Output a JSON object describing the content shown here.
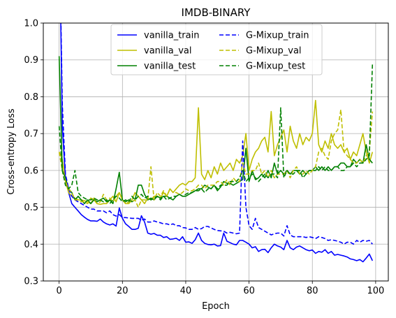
{
  "chart_data": {
    "type": "line",
    "title": "IMDB-BINARY",
    "xlabel": "Epoch",
    "ylabel": "Cross-entropy Loss",
    "xlim": [
      -5,
      104
    ],
    "ylim": [
      0.3,
      1.0
    ],
    "xticks": [
      0,
      20,
      40,
      60,
      80,
      100
    ],
    "yticks": [
      0.3,
      0.4,
      0.5,
      0.6,
      0.7,
      0.8,
      0.9,
      1.0
    ],
    "xtick_labels": [
      "0",
      "20",
      "40",
      "60",
      "80",
      "100"
    ],
    "ytick_labels": [
      "0.3",
      "0.4",
      "0.5",
      "0.6",
      "0.7",
      "0.8",
      "0.9",
      "1.0"
    ],
    "grid": true,
    "legend_position": "top-center",
    "x": [
      0,
      1,
      2,
      3,
      4,
      5,
      6,
      7,
      8,
      9,
      10,
      11,
      12,
      13,
      14,
      15,
      16,
      17,
      18,
      19,
      20,
      21,
      22,
      23,
      24,
      25,
      26,
      27,
      28,
      29,
      30,
      31,
      32,
      33,
      34,
      35,
      36,
      37,
      38,
      39,
      40,
      41,
      42,
      43,
      44,
      45,
      46,
      47,
      48,
      49,
      50,
      51,
      52,
      53,
      54,
      55,
      56,
      57,
      58,
      59,
      60,
      61,
      62,
      63,
      64,
      65,
      66,
      67,
      68,
      69,
      70,
      71,
      72,
      73,
      74,
      75,
      76,
      77,
      78,
      79,
      80,
      81,
      82,
      83,
      84,
      85,
      86,
      87,
      88,
      89,
      90,
      91,
      92,
      93,
      94,
      95,
      96,
      97,
      98,
      99
    ],
    "series": [
      {
        "name": "vanilla_train",
        "color": "#0000ff",
        "dash": "solid",
        "values": [
          1.3,
          0.72,
          0.58,
          0.54,
          0.51,
          0.5,
          0.49,
          0.48,
          0.473,
          0.467,
          0.463,
          0.463,
          0.462,
          0.468,
          0.46,
          0.455,
          0.452,
          0.455,
          0.449,
          0.498,
          0.47,
          0.455,
          0.448,
          0.44,
          0.44,
          0.443,
          0.477,
          0.46,
          0.43,
          0.427,
          0.429,
          0.424,
          0.424,
          0.418,
          0.42,
          0.413,
          0.414,
          0.416,
          0.41,
          0.42,
          0.405,
          0.406,
          0.402,
          0.412,
          0.43,
          0.41,
          0.402,
          0.399,
          0.398,
          0.4,
          0.395,
          0.396,
          0.43,
          0.408,
          0.404,
          0.4,
          0.398,
          0.41,
          0.41,
          0.405,
          0.4,
          0.39,
          0.393,
          0.38,
          0.385,
          0.386,
          0.377,
          0.39,
          0.4,
          0.395,
          0.392,
          0.385,
          0.41,
          0.39,
          0.385,
          0.392,
          0.395,
          0.39,
          0.385,
          0.382,
          0.384,
          0.375,
          0.38,
          0.378,
          0.385,
          0.375,
          0.38,
          0.37,
          0.372,
          0.37,
          0.368,
          0.365,
          0.36,
          0.358,
          0.355,
          0.358,
          0.352,
          0.362,
          0.373,
          0.355
        ]
      },
      {
        "name": "vanilla_val",
        "color": "#bfbf00",
        "dash": "solid",
        "values": [
          0.65,
          0.63,
          0.57,
          0.54,
          0.53,
          0.525,
          0.52,
          0.52,
          0.518,
          0.515,
          0.51,
          0.525,
          0.51,
          0.508,
          0.51,
          0.51,
          0.52,
          0.53,
          0.515,
          0.54,
          0.52,
          0.51,
          0.51,
          0.52,
          0.54,
          0.53,
          0.52,
          0.51,
          0.525,
          0.52,
          0.53,
          0.53,
          0.525,
          0.54,
          0.53,
          0.55,
          0.54,
          0.55,
          0.56,
          0.565,
          0.56,
          0.57,
          0.57,
          0.58,
          0.77,
          0.59,
          0.575,
          0.6,
          0.58,
          0.61,
          0.59,
          0.62,
          0.6,
          0.61,
          0.62,
          0.6,
          0.63,
          0.62,
          0.64,
          0.7,
          0.6,
          0.63,
          0.65,
          0.66,
          0.68,
          0.69,
          0.65,
          0.76,
          0.64,
          0.67,
          0.69,
          0.71,
          0.65,
          0.72,
          0.68,
          0.66,
          0.7,
          0.67,
          0.69,
          0.68,
          0.7,
          0.79,
          0.67,
          0.65,
          0.68,
          0.66,
          0.7,
          0.67,
          0.66,
          0.67,
          0.65,
          0.66,
          0.63,
          0.65,
          0.64,
          0.67,
          0.7,
          0.65,
          0.62,
          0.65
        ]
      },
      {
        "name": "vanilla_test",
        "color": "#008000",
        "dash": "solid",
        "values": [
          0.91,
          0.6,
          0.58,
          0.55,
          0.54,
          0.52,
          0.53,
          0.52,
          0.51,
          0.52,
          0.51,
          0.52,
          0.515,
          0.52,
          0.525,
          0.515,
          0.52,
          0.51,
          0.55,
          0.595,
          0.52,
          0.515,
          0.52,
          0.515,
          0.52,
          0.56,
          0.56,
          0.535,
          0.52,
          0.525,
          0.52,
          0.53,
          0.525,
          0.53,
          0.53,
          0.525,
          0.52,
          0.53,
          0.535,
          0.53,
          0.53,
          0.535,
          0.54,
          0.545,
          0.55,
          0.55,
          0.56,
          0.555,
          0.55,
          0.56,
          0.545,
          0.555,
          0.57,
          0.565,
          0.565,
          0.56,
          0.565,
          0.57,
          0.575,
          0.66,
          0.57,
          0.6,
          0.575,
          0.58,
          0.59,
          0.58,
          0.6,
          0.58,
          0.62,
          0.59,
          0.6,
          0.59,
          0.6,
          0.59,
          0.6,
          0.6,
          0.59,
          0.6,
          0.59,
          0.6,
          0.6,
          0.61,
          0.6,
          0.61,
          0.6,
          0.61,
          0.6,
          0.61,
          0.61,
          0.62,
          0.62,
          0.61,
          0.61,
          0.63,
          0.62,
          0.63,
          0.62,
          0.67,
          0.63,
          0.62
        ]
      },
      {
        "name": "G-Mixup_train",
        "color": "#0000ff",
        "dash": "dashed",
        "values": [
          1.3,
          0.78,
          0.59,
          0.55,
          0.53,
          0.52,
          0.515,
          0.51,
          0.505,
          0.5,
          0.495,
          0.495,
          0.49,
          0.49,
          0.49,
          0.485,
          0.49,
          0.48,
          0.476,
          0.48,
          0.472,
          0.472,
          0.471,
          0.47,
          0.47,
          0.47,
          0.465,
          0.468,
          0.46,
          0.46,
          0.463,
          0.46,
          0.458,
          0.455,
          0.455,
          0.452,
          0.455,
          0.45,
          0.45,
          0.445,
          0.444,
          0.44,
          0.44,
          0.445,
          0.44,
          0.442,
          0.448,
          0.448,
          0.444,
          0.44,
          0.437,
          0.436,
          0.435,
          0.43,
          0.432,
          0.43,
          0.428,
          0.43,
          0.68,
          0.5,
          0.45,
          0.44,
          0.47,
          0.445,
          0.44,
          0.435,
          0.43,
          0.425,
          0.428,
          0.43,
          0.43,
          0.422,
          0.45,
          0.425,
          0.42,
          0.42,
          0.42,
          0.42,
          0.418,
          0.42,
          0.418,
          0.415,
          0.42,
          0.418,
          0.415,
          0.41,
          0.412,
          0.41,
          0.408,
          0.405,
          0.4,
          0.405,
          0.405,
          0.4,
          0.41,
          0.405,
          0.41,
          0.408,
          0.41,
          0.4
        ]
      },
      {
        "name": "G-Mixup_val",
        "color": "#bfbf00",
        "dash": "dashed",
        "values": [
          0.65,
          0.6,
          0.57,
          0.55,
          0.54,
          0.52,
          0.52,
          0.515,
          0.515,
          0.51,
          0.525,
          0.52,
          0.51,
          0.515,
          0.535,
          0.52,
          0.525,
          0.515,
          0.53,
          0.54,
          0.52,
          0.51,
          0.515,
          0.515,
          0.52,
          0.5,
          0.52,
          0.52,
          0.52,
          0.61,
          0.52,
          0.54,
          0.53,
          0.545,
          0.53,
          0.55,
          0.54,
          0.54,
          0.535,
          0.54,
          0.55,
          0.545,
          0.545,
          0.55,
          0.56,
          0.56,
          0.55,
          0.56,
          0.56,
          0.56,
          0.57,
          0.57,
          0.56,
          0.575,
          0.56,
          0.58,
          0.57,
          0.57,
          0.62,
          0.59,
          0.59,
          0.6,
          0.6,
          0.62,
          0.59,
          0.6,
          0.58,
          0.6,
          0.58,
          0.59,
          0.59,
          0.59,
          0.6,
          0.58,
          0.6,
          0.61,
          0.59,
          0.59,
          0.6,
          0.59,
          0.6,
          0.61,
          0.65,
          0.66,
          0.64,
          0.63,
          0.68,
          0.7,
          0.71,
          0.765,
          0.65,
          0.64,
          0.63,
          0.62,
          0.62,
          0.63,
          0.62,
          0.64,
          0.65,
          0.76
        ]
      },
      {
        "name": "G-Mixup_test",
        "color": "#008000",
        "dash": "dashed",
        "values": [
          0.72,
          0.6,
          0.56,
          0.55,
          0.56,
          0.6,
          0.54,
          0.53,
          0.525,
          0.52,
          0.52,
          0.525,
          0.52,
          0.52,
          0.515,
          0.52,
          0.51,
          0.52,
          0.53,
          0.525,
          0.515,
          0.52,
          0.515,
          0.53,
          0.52,
          0.53,
          0.535,
          0.525,
          0.53,
          0.52,
          0.525,
          0.53,
          0.52,
          0.53,
          0.52,
          0.525,
          0.53,
          0.53,
          0.535,
          0.53,
          0.535,
          0.54,
          0.54,
          0.545,
          0.545,
          0.55,
          0.54,
          0.55,
          0.55,
          0.56,
          0.55,
          0.56,
          0.56,
          0.56,
          0.57,
          0.57,
          0.57,
          0.58,
          0.6,
          0.57,
          0.58,
          0.59,
          0.58,
          0.57,
          0.58,
          0.59,
          0.58,
          0.59,
          0.59,
          0.58,
          0.77,
          0.58,
          0.6,
          0.59,
          0.59,
          0.6,
          0.6,
          0.58,
          0.59,
          0.6,
          0.6,
          0.6,
          0.61,
          0.6,
          0.61,
          0.6,
          0.6,
          0.61,
          0.61,
          0.6,
          0.6,
          0.61,
          0.61,
          0.62,
          0.61,
          0.62,
          0.62,
          0.63,
          0.64,
          0.89
        ]
      }
    ]
  }
}
